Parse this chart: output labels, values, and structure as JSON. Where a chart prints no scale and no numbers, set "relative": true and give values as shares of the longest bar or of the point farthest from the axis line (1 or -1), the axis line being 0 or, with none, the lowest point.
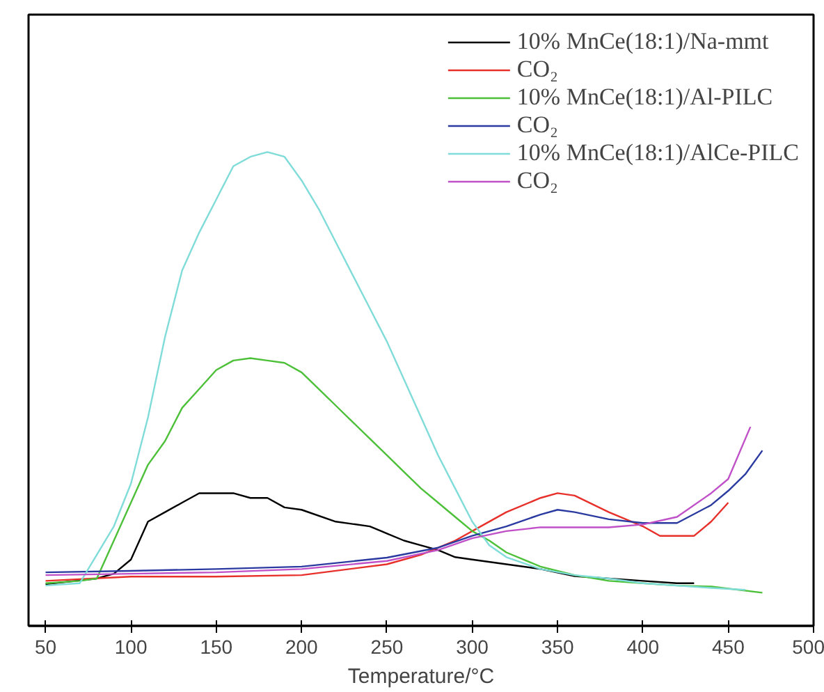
{
  "chart_data": {
    "type": "line",
    "xlabel": "Temperature/°C",
    "relative": true,
    "xlim": [
      40,
      500
    ],
    "xticks": [
      50,
      100,
      150,
      200,
      250,
      300,
      350,
      400,
      450,
      500
    ],
    "grid": false,
    "legend": "top right",
    "tick_labels": "x",
    "series": [
      {
        "name": "10% MnCe(18:1)/Na-mmt",
        "color": "#000000",
        "x": [
          50,
          80,
          90,
          100,
          110,
          120,
          130,
          140,
          150,
          160,
          170,
          180,
          190,
          200,
          220,
          240,
          250,
          260,
          270,
          280,
          290,
          300,
          320,
          340,
          360,
          380,
          400,
          420,
          430
        ],
        "values": [
          0.088,
          0.1,
          0.11,
          0.14,
          0.22,
          0.24,
          0.26,
          0.28,
          0.28,
          0.28,
          0.27,
          0.27,
          0.25,
          0.245,
          0.22,
          0.21,
          0.195,
          0.18,
          0.17,
          0.16,
          0.145,
          0.14,
          0.13,
          0.12,
          0.105,
          0.1,
          0.095,
          0.09,
          0.09
        ]
      },
      {
        "name": "CO₂",
        "color": "#e8302a",
        "x": [
          50,
          100,
          150,
          200,
          250,
          270,
          290,
          300,
          320,
          340,
          350,
          360,
          380,
          400,
          410,
          420,
          430,
          440,
          450
        ],
        "values": [
          0.095,
          0.104,
          0.104,
          0.107,
          0.13,
          0.15,
          0.18,
          0.2,
          0.24,
          0.27,
          0.28,
          0.275,
          0.24,
          0.21,
          0.19,
          0.19,
          0.19,
          0.22,
          0.26
        ]
      },
      {
        "name": "10% MnCe(18:1)/Al-PILC",
        "color": "#4cc038",
        "x": [
          50,
          70,
          80,
          90,
          100,
          110,
          120,
          130,
          140,
          150,
          160,
          170,
          180,
          190,
          200,
          210,
          220,
          230,
          240,
          250,
          260,
          270,
          280,
          290,
          300,
          310,
          320,
          340,
          360,
          380,
          400,
          420,
          440,
          470
        ],
        "values": [
          0.09,
          0.095,
          0.1,
          0.18,
          0.26,
          0.34,
          0.39,
          0.46,
          0.5,
          0.54,
          0.56,
          0.565,
          0.56,
          0.555,
          0.535,
          0.5,
          0.465,
          0.43,
          0.395,
          0.36,
          0.325,
          0.29,
          0.26,
          0.23,
          0.2,
          0.18,
          0.155,
          0.125,
          0.107,
          0.095,
          0.09,
          0.085,
          0.083,
          0.07
        ]
      },
      {
        "name": "CO₂",
        "color": "#2a3aa0",
        "x": [
          50,
          100,
          150,
          200,
          250,
          280,
          300,
          320,
          340,
          350,
          360,
          380,
          400,
          420,
          440,
          450,
          460,
          470
        ],
        "values": [
          0.113,
          0.116,
          0.12,
          0.125,
          0.144,
          0.165,
          0.19,
          0.21,
          0.235,
          0.245,
          0.24,
          0.225,
          0.217,
          0.217,
          0.255,
          0.285,
          0.32,
          0.37
        ]
      },
      {
        "name": "10% MnCe(18:1)/AlCe-PILC",
        "color": "#7fdcd8",
        "x": [
          50,
          70,
          80,
          90,
          100,
          110,
          120,
          130,
          140,
          150,
          160,
          170,
          180,
          190,
          200,
          210,
          220,
          230,
          240,
          250,
          260,
          270,
          280,
          290,
          300,
          310,
          320,
          340,
          360,
          380,
          400,
          420,
          440,
          460
        ],
        "values": [
          0.085,
          0.09,
          0.15,
          0.21,
          0.3,
          0.44,
          0.61,
          0.75,
          0.83,
          0.9,
          0.97,
          0.99,
          1,
          0.99,
          0.94,
          0.88,
          0.81,
          0.74,
          0.67,
          0.6,
          0.52,
          0.44,
          0.36,
          0.29,
          0.22,
          0.17,
          0.145,
          0.12,
          0.107,
          0.1,
          0.09,
          0.085,
          0.08,
          0.076
        ]
      },
      {
        "name": "CO₂",
        "color": "#c050c8",
        "x": [
          50,
          100,
          150,
          200,
          250,
          280,
          300,
          320,
          340,
          360,
          380,
          400,
          420,
          440,
          450,
          463
        ],
        "values": [
          0.107,
          0.11,
          0.113,
          0.12,
          0.137,
          0.16,
          0.185,
          0.2,
          0.208,
          0.208,
          0.208,
          0.214,
          0.23,
          0.28,
          0.31,
          0.42
        ]
      }
    ]
  }
}
